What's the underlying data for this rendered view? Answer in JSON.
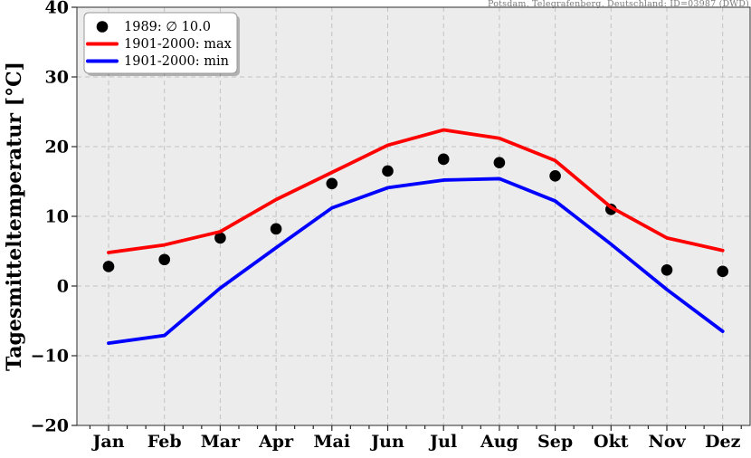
{
  "header": {
    "station_label": "Potsdam, Telegrafenberg, Deutschland: ID=03987 (DWD)"
  },
  "colors": {
    "plot_bg": "#ececec",
    "grid": "#c2c2c2",
    "spine": "#2b2b2b",
    "scatter": "#000000",
    "max_line": "#ff0000",
    "min_line": "#0000ff",
    "header_text": "#7a7a7a",
    "legend_border": "#999999"
  },
  "chart_data": {
    "type": "line",
    "title": "",
    "xlabel": "",
    "ylabel": "Tagesmitteltemperatur [°C]",
    "categories": [
      "Jan",
      "Feb",
      "Mar",
      "Apr",
      "Mai",
      "Jun",
      "Jul",
      "Aug",
      "Sep",
      "Okt",
      "Nov",
      "Dez"
    ],
    "ylim": [
      -20,
      40
    ],
    "yticks": [
      40,
      30,
      20,
      10,
      0,
      -10,
      -20
    ],
    "grid": "dashed",
    "legend_position": "top-left",
    "series": [
      {
        "name": "1989: ∅ 10.0",
        "kind": "scatter",
        "color": "#000000",
        "values": [
          2.8,
          3.8,
          6.9,
          8.2,
          14.7,
          16.5,
          18.2,
          17.7,
          15.8,
          11.0,
          2.3,
          2.1
        ]
      },
      {
        "name": "1901-2000: max",
        "kind": "line",
        "color": "#ff0000",
        "values": [
          4.8,
          5.9,
          7.8,
          12.4,
          16.3,
          20.2,
          22.4,
          21.2,
          18.0,
          11.3,
          6.9,
          5.1
        ]
      },
      {
        "name": "1901-2000: min",
        "kind": "line",
        "color": "#0000ff",
        "values": [
          -8.2,
          -7.1,
          -0.3,
          5.5,
          11.2,
          14.1,
          15.2,
          15.4,
          12.2,
          6.0,
          -0.5,
          -6.5
        ]
      }
    ]
  }
}
